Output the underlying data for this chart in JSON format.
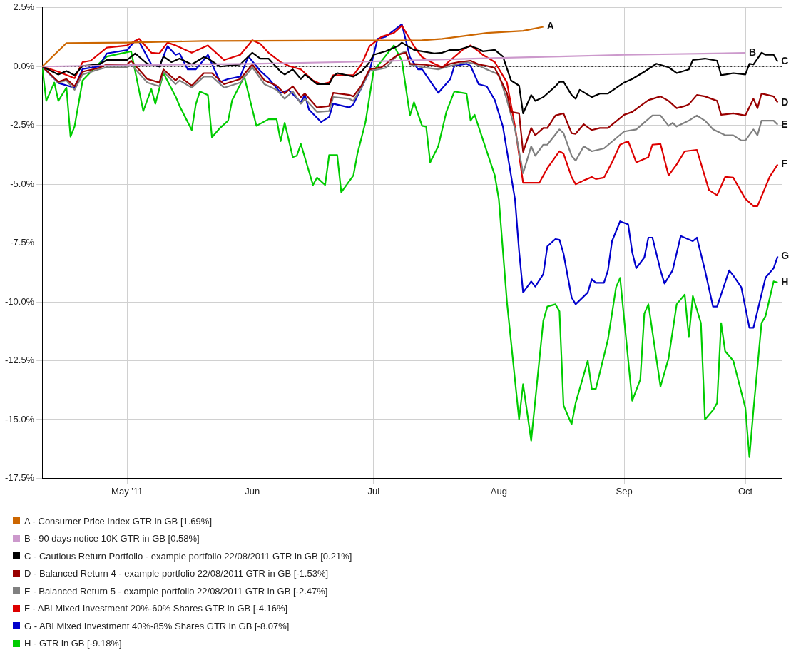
{
  "chart_data": {
    "type": "line",
    "xlim": [
      "2011-04-10",
      "2011-10-10"
    ],
    "xticks": [
      {
        "value": "2011-05-01",
        "label": "May '11"
      },
      {
        "value": "2011-06-01",
        "label": "Jun"
      },
      {
        "value": "2011-07-01",
        "label": "Jul"
      },
      {
        "value": "2011-08-01",
        "label": "Aug"
      },
      {
        "value": "2011-09-01",
        "label": "Sep"
      },
      {
        "value": "2011-10-01",
        "label": "Oct"
      }
    ],
    "ylim": [
      -17.5,
      2.5
    ],
    "yticks": [
      {
        "value": -17.5,
        "label": "-17.5%"
      },
      {
        "value": -15,
        "label": "-15.0%"
      },
      {
        "value": -12.5,
        "label": "-12.5%"
      },
      {
        "value": -10,
        "label": "-10.0%"
      },
      {
        "value": -7.5,
        "label": "-7.5%"
      },
      {
        "value": -5,
        "label": "-5.0%"
      },
      {
        "value": -2.5,
        "label": "-2.5%"
      },
      {
        "value": 0,
        "label": "0.0%"
      },
      {
        "value": 2.5,
        "label": "2.5%"
      }
    ],
    "grid": true,
    "legend": "bottom",
    "ref_lines": [
      {
        "axis": "y",
        "value": 0,
        "color": "#000000",
        "line_style": "dotted"
      }
    ],
    "annotations": [
      {
        "text": "A",
        "x": "2011-08-12",
        "y": 1.69
      },
      {
        "text": "B",
        "x": "2011-10-01",
        "y": 0.58
      },
      {
        "text": "C",
        "x": "2011-10-09",
        "y": 0.21
      },
      {
        "text": "D",
        "x": "2011-10-09",
        "y": -1.53
      },
      {
        "text": "E",
        "x": "2011-10-09",
        "y": -2.47
      },
      {
        "text": "F",
        "x": "2011-10-09",
        "y": -4.16
      },
      {
        "text": "G",
        "x": "2011-10-09",
        "y": -8.07
      },
      {
        "text": "H",
        "x": "2011-10-09",
        "y": -9.18
      }
    ],
    "series": [
      {
        "name": "A - Consumer Price Index GTR in GB [1.69%]",
        "color": "#cc6600",
        "x": [
          "2011-04-10",
          "2011-04-16",
          "2011-05-01",
          "2011-05-20",
          "2011-07-13",
          "2011-07-18",
          "2011-07-22",
          "2011-07-29",
          "2011-08-07",
          "2011-08-12"
        ],
        "values": [
          0,
          1.0,
          1.02,
          1.09,
          1.12,
          1.18,
          1.27,
          1.43,
          1.52,
          1.69
        ]
      },
      {
        "name": "B - 90 days notice 10K GTR in GB [0.58%]",
        "color": "#cc99cc",
        "x": [
          "2011-04-10",
          "2011-05-01",
          "2011-06-01",
          "2011-07-01",
          "2011-08-01",
          "2011-08-16",
          "2011-09-01",
          "2011-10-01"
        ],
        "values": [
          0,
          0.06,
          0.12,
          0.22,
          0.37,
          0.43,
          0.5,
          0.58
        ]
      },
      {
        "name": "C - Cautious Return Portfolio - example portfolio 22/08/2011 GTR in GB [0.21%]",
        "color": "#000000",
        "x": [
          "2011-04-10",
          "2011-04-14",
          "2011-04-16",
          "2011-04-18",
          "2011-04-20",
          "2011-04-24",
          "2011-04-26",
          "2011-05-01",
          "2011-05-03",
          "2011-05-06",
          "2011-05-09",
          "2011-05-10",
          "2011-05-12",
          "2011-05-14",
          "2011-05-17",
          "2011-05-20",
          "2011-05-21",
          "2011-05-24",
          "2011-05-29",
          "2011-06-01",
          "2011-06-03",
          "2011-06-05",
          "2011-06-08",
          "2011-06-09",
          "2011-06-11",
          "2011-06-13",
          "2011-06-14",
          "2011-06-17",
          "2011-06-20",
          "2011-06-21",
          "2011-06-22",
          "2011-06-26",
          "2011-06-28",
          "2011-06-30",
          "2011-07-01",
          "2011-07-04",
          "2011-07-07",
          "2011-07-08",
          "2011-07-11",
          "2011-07-13",
          "2011-07-16",
          "2011-07-18",
          "2011-07-20",
          "2011-07-22",
          "2011-07-25",
          "2011-07-27",
          "2011-07-28",
          "2011-07-31",
          "2011-08-02",
          "2011-08-04",
          "2011-08-06",
          "2011-08-07",
          "2011-08-09",
          "2011-08-10",
          "2011-08-12",
          "2011-08-15",
          "2011-08-16",
          "2011-08-17",
          "2011-08-19",
          "2011-08-20",
          "2011-08-21",
          "2011-08-24",
          "2011-08-26",
          "2011-08-28",
          "2011-09-01",
          "2011-09-03",
          "2011-09-06",
          "2011-09-09",
          "2011-09-12",
          "2011-09-14",
          "2011-09-17",
          "2011-09-18",
          "2011-09-21",
          "2011-09-24",
          "2011-09-25",
          "2011-09-28",
          "2011-10-01",
          "2011-10-02",
          "2011-10-03",
          "2011-10-05",
          "2011-10-06",
          "2011-10-08",
          "2011-10-09"
        ],
        "values": [
          0,
          -0.34,
          -0.19,
          -0.37,
          0.03,
          0.09,
          0.28,
          0.28,
          0.56,
          0.12,
          0,
          0.43,
          0.19,
          0.34,
          0.09,
          0.4,
          0.34,
          0,
          0.09,
          0.59,
          0.34,
          0.34,
          -0.22,
          -0.34,
          -0.12,
          -0.53,
          -0.34,
          -0.75,
          -0.75,
          -0.43,
          -0.28,
          -0.43,
          -0.22,
          0.19,
          0.5,
          0.65,
          0.87,
          1.02,
          0.71,
          0.65,
          0.56,
          0.59,
          0.71,
          0.71,
          0.87,
          0.75,
          0.65,
          0.71,
          0.43,
          -0.59,
          -0.81,
          -1.99,
          -1.21,
          -1.46,
          -1.3,
          -0.84,
          -0.65,
          -0.65,
          -1.21,
          -1.37,
          -0.99,
          -1.3,
          -1.15,
          -1.15,
          -0.68,
          -0.53,
          -0.22,
          0.12,
          -0.03,
          -0.28,
          -0.12,
          0.28,
          0.34,
          0.25,
          -0.37,
          -0.28,
          -0.34,
          0.12,
          0.09,
          0.59,
          0.5,
          0.5,
          0.21
        ]
      },
      {
        "name": "D - Balanced Return 4 - example portfolio 22/08/2011 GTR in GB [-1.53%]",
        "color": "#990000",
        "x": [
          "2011-04-10",
          "2011-04-14",
          "2011-04-16",
          "2011-04-18",
          "2011-04-20",
          "2011-04-24",
          "2011-04-26",
          "2011-05-01",
          "2011-05-02",
          "2011-05-06",
          "2011-05-09",
          "2011-05-10",
          "2011-05-13",
          "2011-05-14",
          "2011-05-17",
          "2011-05-20",
          "2011-05-22",
          "2011-05-25",
          "2011-05-29",
          "2011-06-01",
          "2011-06-04",
          "2011-06-07",
          "2011-06-09",
          "2011-06-11",
          "2011-06-13",
          "2011-06-14",
          "2011-06-17",
          "2011-06-20",
          "2011-06-21",
          "2011-06-25",
          "2011-06-26",
          "2011-06-28",
          "2011-06-30",
          "2011-07-03",
          "2011-07-05",
          "2011-07-07",
          "2011-07-09",
          "2011-07-10",
          "2011-07-13",
          "2011-07-16",
          "2011-07-18",
          "2011-07-20",
          "2011-07-22",
          "2011-07-25",
          "2011-07-27",
          "2011-07-29",
          "2011-07-31",
          "2011-08-03",
          "2011-08-04",
          "2011-08-06",
          "2011-08-07",
          "2011-08-09",
          "2011-08-10",
          "2011-08-12",
          "2011-08-13",
          "2011-08-15",
          "2011-08-17",
          "2011-08-19",
          "2011-08-20",
          "2011-08-22",
          "2011-08-24",
          "2011-08-26",
          "2011-08-28",
          "2011-09-01",
          "2011-09-03",
          "2011-09-07",
          "2011-09-10",
          "2011-09-12",
          "2011-09-14",
          "2011-09-16",
          "2011-09-17",
          "2011-09-19",
          "2011-09-21",
          "2011-09-24",
          "2011-09-25",
          "2011-09-28",
          "2011-10-01",
          "2011-10-03",
          "2011-10-04",
          "2011-10-05",
          "2011-10-08",
          "2011-10-09"
        ],
        "values": [
          0,
          -0.65,
          -0.53,
          -0.84,
          -0.22,
          -0.06,
          0.09,
          0.09,
          0.25,
          -0.53,
          -0.68,
          -0.12,
          -0.59,
          -0.43,
          -0.81,
          -0.28,
          -0.28,
          -0.75,
          -0.53,
          0.09,
          -0.59,
          -0.81,
          -1.15,
          -0.84,
          -1.3,
          -1.15,
          -1.74,
          -1.68,
          -1.12,
          -1.21,
          -1.27,
          -0.81,
          -0.12,
          -0.03,
          0.25,
          0.5,
          0.59,
          0.12,
          0.09,
          0.03,
          -0.03,
          0.12,
          0.19,
          0.25,
          0.09,
          0.03,
          -0.06,
          -1.12,
          -1.93,
          -1.99,
          -3.63,
          -2.61,
          -2.92,
          -2.61,
          -2.61,
          -2.08,
          -1.99,
          -2.83,
          -2.86,
          -2.45,
          -2.7,
          -2.61,
          -2.61,
          -2.05,
          -1.93,
          -1.43,
          -1.27,
          -1.46,
          -1.77,
          -1.68,
          -1.61,
          -1.21,
          -1.27,
          -1.46,
          -2.05,
          -1.99,
          -2.08,
          -1.37,
          -1.77,
          -1.15,
          -1.27,
          -1.53
        ]
      },
      {
        "name": "E - Balanced Return 5 - example portfolio 22/08/2011 GTR in GB [-2.47%]",
        "color": "#808080",
        "x": [
          "2011-04-10",
          "2011-04-14",
          "2011-04-16",
          "2011-04-18",
          "2011-04-20",
          "2011-04-24",
          "2011-04-26",
          "2011-05-01",
          "2011-05-02",
          "2011-05-06",
          "2011-05-09",
          "2011-05-10",
          "2011-05-13",
          "2011-05-14",
          "2011-05-17",
          "2011-05-20",
          "2011-05-22",
          "2011-05-25",
          "2011-05-29",
          "2011-06-01",
          "2011-06-04",
          "2011-06-07",
          "2011-06-09",
          "2011-06-11",
          "2011-06-13",
          "2011-06-14",
          "2011-06-17",
          "2011-06-20",
          "2011-06-21",
          "2011-06-25",
          "2011-06-26",
          "2011-06-28",
          "2011-06-30",
          "2011-07-04",
          "2011-07-07",
          "2011-07-09",
          "2011-07-10",
          "2011-07-13",
          "2011-07-17",
          "2011-07-20",
          "2011-07-24",
          "2011-07-26",
          "2011-07-29",
          "2011-08-01",
          "2011-08-03",
          "2011-08-05",
          "2011-08-07",
          "2011-08-09",
          "2011-08-10",
          "2011-08-12",
          "2011-08-13",
          "2011-08-16",
          "2011-08-17",
          "2011-08-19",
          "2011-08-20",
          "2011-08-22",
          "2011-08-24",
          "2011-08-27",
          "2011-09-01",
          "2011-09-04",
          "2011-09-08",
          "2011-09-10",
          "2011-09-12",
          "2011-09-13",
          "2011-09-14",
          "2011-09-17",
          "2011-09-19",
          "2011-09-21",
          "2011-09-23",
          "2011-09-26",
          "2011-09-28",
          "2011-09-30",
          "2011-10-01",
          "2011-10-03",
          "2011-10-04",
          "2011-10-05",
          "2011-10-08",
          "2011-10-09"
        ],
        "values": [
          0,
          -0.68,
          -0.59,
          -0.99,
          -0.34,
          -0.12,
          -0.03,
          -0.03,
          0.09,
          -0.68,
          -0.84,
          -0.22,
          -0.75,
          -0.59,
          -0.9,
          -0.43,
          -0.43,
          -0.9,
          -0.68,
          -0.03,
          -0.75,
          -0.99,
          -1.37,
          -1.06,
          -1.58,
          -1.37,
          -1.93,
          -1.89,
          -1.3,
          -1.37,
          -1.46,
          -0.9,
          -0.19,
          -0.06,
          0.5,
          0.65,
          0.09,
          -0.03,
          -0.12,
          0.03,
          0.19,
          0.12,
          -0.12,
          -0.34,
          -1.43,
          -2.67,
          -4.53,
          -3.39,
          -3.79,
          -3.32,
          -3.32,
          -2.67,
          -2.83,
          -3.79,
          -4.0,
          -3.39,
          -3.6,
          -3.48,
          -2.76,
          -2.67,
          -2.08,
          -2.08,
          -2.52,
          -2.39,
          -2.55,
          -2.3,
          -2.08,
          -2.3,
          -2.67,
          -2.92,
          -2.92,
          -3.14,
          -3.14,
          -2.67,
          -2.92,
          -2.3,
          -2.3,
          -2.47
        ]
      },
      {
        "name": "F - ABI Mixed Investment 20%-60% Shares GTR in GB [-4.16%]",
        "color": "#dd0000",
        "x": [
          "2011-04-10",
          "2011-04-14",
          "2011-04-18",
          "2011-04-20",
          "2011-04-22",
          "2011-04-26",
          "2011-05-01",
          "2011-05-04",
          "2011-05-07",
          "2011-05-09",
          "2011-05-11",
          "2011-05-13",
          "2011-05-17",
          "2011-05-21",
          "2011-05-25",
          "2011-05-29",
          "2011-06-01",
          "2011-06-03",
          "2011-06-05",
          "2011-06-08",
          "2011-06-10",
          "2011-06-13",
          "2011-06-16",
          "2011-06-18",
          "2011-06-20",
          "2011-06-21",
          "2011-06-26",
          "2011-06-28",
          "2011-06-30",
          "2011-07-03",
          "2011-07-06",
          "2011-07-08",
          "2011-07-11",
          "2011-07-13",
          "2011-07-16",
          "2011-07-18",
          "2011-07-19",
          "2011-07-23",
          "2011-07-25",
          "2011-07-27",
          "2011-07-28",
          "2011-07-29",
          "2011-07-31",
          "2011-08-03",
          "2011-08-05",
          "2011-08-07",
          "2011-08-11",
          "2011-08-13",
          "2011-08-16",
          "2011-08-17",
          "2011-08-19",
          "2011-08-20",
          "2011-08-22",
          "2011-08-24",
          "2011-08-25",
          "2011-08-27",
          "2011-08-29",
          "2011-08-31",
          "2011-09-02",
          "2011-09-04",
          "2011-09-07",
          "2011-09-08",
          "2011-09-10",
          "2011-09-12",
          "2011-09-14",
          "2011-09-16",
          "2011-09-19",
          "2011-09-22",
          "2011-09-24",
          "2011-09-26",
          "2011-09-28",
          "2011-10-01",
          "2011-10-03",
          "2011-10-04",
          "2011-10-07",
          "2011-10-09"
        ],
        "values": [
          0,
          -0.22,
          -0.5,
          0.19,
          0.25,
          0.81,
          0.9,
          1.18,
          0.59,
          0.56,
          1.02,
          0.9,
          0.59,
          0.9,
          0.28,
          0.5,
          1.12,
          0.96,
          0.59,
          0.19,
          0.03,
          -0.12,
          -0.59,
          -0.75,
          -0.68,
          -0.37,
          -0.37,
          0.09,
          0.87,
          1.27,
          1.43,
          1.74,
          0.87,
          0.4,
          0.12,
          -0.03,
          0.12,
          0.71,
          0.9,
          0.65,
          0.5,
          0.4,
          0.19,
          -0.68,
          -2.55,
          -4.94,
          -4.94,
          -4.32,
          -3.6,
          -3.7,
          -4.69,
          -5.0,
          -4.84,
          -4.69,
          -4.78,
          -4.72,
          -4.07,
          -3.32,
          -3.17,
          -4.07,
          -3.85,
          -3.32,
          -3.29,
          -4.63,
          -4.16,
          -3.6,
          -3.54,
          -5.25,
          -5.47,
          -4.69,
          -4.72,
          -5.62,
          -5.93,
          -5.93,
          -4.69,
          -4.16
        ]
      },
      {
        "name": "G - ABI Mixed Investment 40%-85% Shares GTR in GB [-8.07%]",
        "color": "#0000cc",
        "x": [
          "2011-04-10",
          "2011-04-14",
          "2011-04-18",
          "2011-04-20",
          "2011-04-24",
          "2011-04-26",
          "2011-05-01",
          "2011-05-03",
          "2011-05-04",
          "2011-05-07",
          "2011-05-09",
          "2011-05-11",
          "2011-05-13",
          "2011-05-14",
          "2011-05-16",
          "2011-05-18",
          "2011-05-21",
          "2011-05-24",
          "2011-05-26",
          "2011-05-29",
          "2011-05-31",
          "2011-06-03",
          "2011-06-05",
          "2011-06-08",
          "2011-06-10",
          "2011-06-13",
          "2011-06-14",
          "2011-06-15",
          "2011-06-18",
          "2011-06-20",
          "2011-06-21",
          "2011-06-25",
          "2011-06-26",
          "2011-06-28",
          "2011-06-30",
          "2011-07-02",
          "2011-07-04",
          "2011-07-08",
          "2011-07-10",
          "2011-07-12",
          "2011-07-13",
          "2011-07-17",
          "2011-07-20",
          "2011-07-21",
          "2011-07-24",
          "2011-07-25",
          "2011-07-27",
          "2011-07-29",
          "2011-07-31",
          "2011-08-02",
          "2011-08-05",
          "2011-08-06",
          "2011-08-07",
          "2011-08-09",
          "2011-08-10",
          "2011-08-12",
          "2011-08-13",
          "2011-08-15",
          "2011-08-16",
          "2011-08-17",
          "2011-08-19",
          "2011-08-20",
          "2011-08-23",
          "2011-08-24",
          "2011-08-25",
          "2011-08-27",
          "2011-08-28",
          "2011-08-29",
          "2011-08-31",
          "2011-09-02",
          "2011-09-03",
          "2011-09-04",
          "2011-09-06",
          "2011-09-07",
          "2011-09-08",
          "2011-09-10",
          "2011-09-11",
          "2011-09-13",
          "2011-09-15",
          "2011-09-18",
          "2011-09-19",
          "2011-09-21",
          "2011-09-23",
          "2011-09-24",
          "2011-09-27",
          "2011-09-28",
          "2011-09-30",
          "2011-10-02",
          "2011-10-03",
          "2011-10-06",
          "2011-10-08",
          "2011-10-09"
        ],
        "values": [
          0,
          -0.7,
          -0.9,
          -0.1,
          0,
          0.56,
          0.7,
          1.1,
          1.05,
          0.1,
          0,
          0.87,
          0.5,
          0.56,
          -0.12,
          -0.12,
          0.5,
          -0.65,
          -0.53,
          -0.43,
          0.43,
          -0.19,
          -0.5,
          -1.12,
          -1.0,
          -1.52,
          -1.21,
          -1.83,
          -2.36,
          -2.14,
          -1.58,
          -1.74,
          -1.61,
          -0.9,
          -0.19,
          1.18,
          1.27,
          1.8,
          0.4,
          -0.12,
          -0.12,
          -1.12,
          -0.53,
          0.03,
          0.12,
          0.03,
          -0.75,
          -0.84,
          -1.43,
          -2.55,
          -5.65,
          -7.83,
          -9.6,
          -9.13,
          -9.35,
          -8.82,
          -7.64,
          -7.33,
          -7.36,
          -7.95,
          -9.81,
          -10.1,
          -9.6,
          -9.04,
          -9.19,
          -9.19,
          -8.66,
          -7.42,
          -6.58,
          -6.71,
          -7.89,
          -8.57,
          -8.11,
          -7.27,
          -7.27,
          -8.66,
          -9.22,
          -8.66,
          -7.2,
          -7.42,
          -7.27,
          -8.66,
          -10.2,
          -10.2,
          -8.66,
          -8.88,
          -9.38,
          -11.1,
          -11.1,
          -8.97,
          -8.57,
          -8.07
        ]
      },
      {
        "name": "H - GTR in GB [-9.18%]",
        "color": "#00cc00",
        "x": [
          "2011-04-10",
          "2011-04-11",
          "2011-04-13",
          "2011-04-14",
          "2011-04-16",
          "2011-04-17",
          "2011-04-18",
          "2011-04-20",
          "2011-04-24",
          "2011-04-26",
          "2011-05-02",
          "2011-05-05",
          "2011-05-07",
          "2011-05-08",
          "2011-05-10",
          "2011-05-13",
          "2011-05-14",
          "2011-05-17",
          "2011-05-18",
          "2011-05-19",
          "2011-05-21",
          "2011-05-22",
          "2011-05-24",
          "2011-05-26",
          "2011-05-27",
          "2011-05-30",
          "2011-06-02",
          "2011-06-05",
          "2011-06-07",
          "2011-06-08",
          "2011-06-09",
          "2011-06-11",
          "2011-06-12",
          "2011-06-13",
          "2011-06-16",
          "2011-06-17",
          "2011-06-19",
          "2011-06-20",
          "2011-06-22",
          "2011-06-23",
          "2011-06-26",
          "2011-06-27",
          "2011-06-29",
          "2011-07-01",
          "2011-07-06",
          "2011-07-08",
          "2011-07-10",
          "2011-07-11",
          "2011-07-13",
          "2011-07-14",
          "2011-07-15",
          "2011-07-17",
          "2011-07-19",
          "2011-07-21",
          "2011-07-24",
          "2011-07-25",
          "2011-07-26",
          "2011-07-31",
          "2011-08-01",
          "2011-08-03",
          "2011-08-06",
          "2011-08-07",
          "2011-08-09",
          "2011-08-12",
          "2011-08-13",
          "2011-08-15",
          "2011-08-16",
          "2011-08-17",
          "2011-08-19",
          "2011-08-20",
          "2011-08-23",
          "2011-08-24",
          "2011-08-25",
          "2011-08-28",
          "2011-08-30",
          "2011-08-31",
          "2011-09-03",
          "2011-09-05",
          "2011-09-06",
          "2011-09-07",
          "2011-09-10",
          "2011-09-12",
          "2011-09-14",
          "2011-09-16",
          "2011-09-17",
          "2011-09-18",
          "2011-09-20",
          "2011-09-21",
          "2011-09-23",
          "2011-09-24",
          "2011-09-25",
          "2011-09-26",
          "2011-09-28",
          "2011-10-01",
          "2011-10-02",
          "2011-10-03",
          "2011-10-05",
          "2011-10-06",
          "2011-10-08",
          "2011-10-09"
        ],
        "values": [
          0,
          -1.46,
          -0.68,
          -1.46,
          -0.9,
          -2.98,
          -2.55,
          -0.59,
          0.12,
          0.43,
          0.65,
          -1.89,
          -0.96,
          -1.58,
          -0.28,
          -1.27,
          -1.68,
          -2.7,
          -1.61,
          -1.06,
          -1.21,
          -3.01,
          -2.61,
          -2.3,
          -1.43,
          -0.43,
          -2.52,
          -2.24,
          -2.24,
          -3.17,
          -2.39,
          -3.85,
          -3.79,
          -3.29,
          -5.03,
          -4.72,
          -5.03,
          -3.76,
          -3.76,
          -5.34,
          -4.63,
          -3.7,
          -2.36,
          -0.19,
          0.9,
          0.25,
          -2.08,
          -1.52,
          -2.52,
          -2.55,
          -4.07,
          -3.39,
          -1.93,
          -1.06,
          -1.15,
          -2.3,
          -2.05,
          -4.63,
          -5.65,
          -10.0,
          -15.0,
          -13.5,
          -15.9,
          -10.8,
          -10.2,
          -10.1,
          -10.4,
          -14.4,
          -15.2,
          -14.3,
          -12.5,
          -13.7,
          -13.7,
          -11.6,
          -9.38,
          -8.98,
          -14.2,
          -13.3,
          -10.5,
          -10.1,
          -13.6,
          -12.4,
          -10.1,
          -9.69,
          -11.5,
          -9.75,
          -10.9,
          -15.0,
          -14.6,
          -14.3,
          -10.9,
          -12.1,
          -12.5,
          -14.5,
          -16.6,
          -14.6,
          -10.9,
          -10.6,
          -9.13,
          -9.18
        ]
      }
    ]
  }
}
